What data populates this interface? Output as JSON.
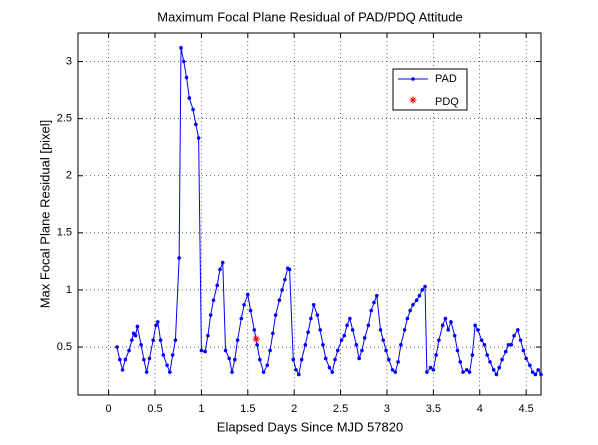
{
  "chart_data": {
    "type": "line",
    "title": "Maximum Focal Plane Residual of PAD/PDQ Attitude",
    "x_label": "Elapsed Days Since MJD 57820",
    "y_label": "Max Focal Plane Residual [pixel]",
    "xlim": [
      -0.33,
      4.66
    ],
    "ylim": [
      0.08,
      3.25
    ],
    "xticks": [
      0,
      0.5,
      1,
      1.5,
      2,
      2.5,
      3,
      3.5,
      4,
      4.5
    ],
    "yticks": [
      0.5,
      1,
      1.5,
      2,
      2.5,
      3
    ],
    "grid": true,
    "legend_position": "upper right",
    "series": [
      {
        "name": "PAD",
        "color": "#0000ff",
        "marker": "dot",
        "x": [
          0.09,
          0.12,
          0.15,
          0.18,
          0.22,
          0.25,
          0.27,
          0.29,
          0.31,
          0.35,
          0.38,
          0.41,
          0.44,
          0.48,
          0.51,
          0.53,
          0.56,
          0.59,
          0.63,
          0.66,
          0.69,
          0.72,
          0.76,
          0.78,
          0.81,
          0.84,
          0.87,
          0.91,
          0.94,
          0.97,
          1.0,
          1.04,
          1.07,
          1.1,
          1.13,
          1.17,
          1.2,
          1.23,
          1.26,
          1.3,
          1.33,
          1.36,
          1.39,
          1.43,
          1.46,
          1.5,
          1.53,
          1.57,
          1.6,
          1.63,
          1.67,
          1.71,
          1.74,
          1.77,
          1.8,
          1.84,
          1.87,
          1.9,
          1.93,
          1.95,
          1.99,
          2.02,
          2.05,
          2.08,
          2.12,
          2.15,
          2.18,
          2.21,
          2.25,
          2.28,
          2.31,
          2.34,
          2.38,
          2.41,
          2.44,
          2.47,
          2.51,
          2.54,
          2.57,
          2.6,
          2.63,
          2.67,
          2.7,
          2.73,
          2.76,
          2.8,
          2.83,
          2.86,
          2.89,
          2.93,
          2.96,
          2.99,
          3.02,
          3.06,
          3.09,
          3.12,
          3.15,
          3.19,
          3.22,
          3.25,
          3.28,
          3.32,
          3.35,
          3.38,
          3.41,
          3.43,
          3.47,
          3.5,
          3.53,
          3.56,
          3.6,
          3.63,
          3.66,
          3.69,
          3.73,
          3.76,
          3.79,
          3.82,
          3.86,
          3.89,
          3.92,
          3.95,
          3.98,
          4.02,
          4.05,
          4.08,
          4.11,
          4.15,
          4.18,
          4.21,
          4.24,
          4.28,
          4.31,
          4.34,
          4.37,
          4.41,
          4.44,
          4.47,
          4.5,
          4.54,
          4.57,
          4.6,
          4.63,
          4.66
        ],
        "values": [
          0.5,
          0.39,
          0.3,
          0.39,
          0.47,
          0.56,
          0.62,
          0.6,
          0.68,
          0.52,
          0.39,
          0.28,
          0.4,
          0.56,
          0.69,
          0.72,
          0.56,
          0.43,
          0.34,
          0.28,
          0.43,
          0.56,
          1.28,
          3.12,
          3.0,
          2.86,
          2.68,
          2.58,
          2.45,
          2.33,
          0.47,
          0.46,
          0.6,
          0.78,
          0.91,
          1.04,
          1.18,
          1.24,
          0.47,
          0.4,
          0.28,
          0.39,
          0.56,
          0.75,
          0.87,
          0.96,
          0.82,
          0.65,
          0.52,
          0.39,
          0.28,
          0.34,
          0.47,
          0.62,
          0.78,
          0.91,
          1.0,
          1.09,
          1.19,
          1.18,
          0.39,
          0.3,
          0.26,
          0.39,
          0.52,
          0.63,
          0.75,
          0.87,
          0.78,
          0.65,
          0.52,
          0.4,
          0.32,
          0.28,
          0.39,
          0.47,
          0.56,
          0.6,
          0.69,
          0.75,
          0.65,
          0.52,
          0.4,
          0.47,
          0.58,
          0.69,
          0.82,
          0.89,
          0.95,
          0.65,
          0.56,
          0.47,
          0.39,
          0.3,
          0.28,
          0.37,
          0.52,
          0.65,
          0.75,
          0.82,
          0.87,
          0.91,
          0.95,
          1.0,
          1.03,
          0.28,
          0.32,
          0.3,
          0.43,
          0.56,
          0.69,
          0.75,
          0.65,
          0.72,
          0.6,
          0.47,
          0.37,
          0.28,
          0.3,
          0.28,
          0.43,
          0.69,
          0.65,
          0.56,
          0.52,
          0.43,
          0.37,
          0.3,
          0.26,
          0.32,
          0.39,
          0.46,
          0.52,
          0.52,
          0.6,
          0.65,
          0.56,
          0.47,
          0.4,
          0.34,
          0.28,
          0.26,
          0.3,
          0.26
        ]
      },
      {
        "name": "PDQ",
        "color": "#ff0000",
        "marker": "asterisk",
        "line": false,
        "x": [
          1.59
        ],
        "values": [
          0.57
        ]
      }
    ]
  }
}
